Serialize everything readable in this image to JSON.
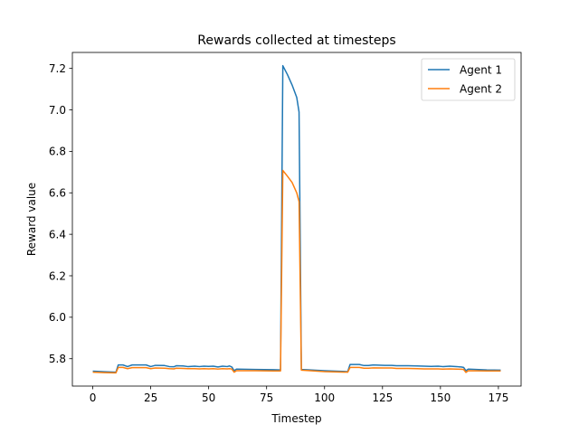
{
  "chart_data": {
    "type": "line",
    "title": "Rewards collected at timesteps",
    "xlabel": "Timestep",
    "ylabel": "Reward value",
    "xlim": [
      -8.8,
      184.8
    ],
    "ylim": [
      5.668,
      7.277
    ],
    "xticks": [
      0,
      25,
      50,
      75,
      100,
      125,
      150,
      175
    ],
    "yticks": [
      5.8,
      6.0,
      6.2,
      6.4,
      6.6,
      6.8,
      7.0,
      7.2
    ],
    "legend_position": "top-right",
    "grid": false,
    "series": [
      {
        "name": "Agent 1",
        "color": "#1f77b4",
        "points": [
          [
            0,
            5.74
          ],
          [
            5,
            5.737
          ],
          [
            10,
            5.735
          ],
          [
            11,
            5.77
          ],
          [
            13,
            5.77
          ],
          [
            15,
            5.762
          ],
          [
            17,
            5.77
          ],
          [
            23,
            5.77
          ],
          [
            25,
            5.762
          ],
          [
            27,
            5.768
          ],
          [
            31,
            5.767
          ],
          [
            33,
            5.762
          ],
          [
            35,
            5.761
          ],
          [
            36,
            5.766
          ],
          [
            39,
            5.765
          ],
          [
            41,
            5.762
          ],
          [
            44,
            5.764
          ],
          [
            46,
            5.762
          ],
          [
            48,
            5.764
          ],
          [
            50,
            5.763
          ],
          [
            52,
            5.764
          ],
          [
            54,
            5.76
          ],
          [
            56,
            5.764
          ],
          [
            58,
            5.762
          ],
          [
            59,
            5.765
          ],
          [
            60,
            5.76
          ],
          [
            61,
            5.742
          ],
          [
            62,
            5.75
          ],
          [
            70,
            5.748
          ],
          [
            78,
            5.747
          ],
          [
            81,
            5.746
          ],
          [
            82,
            7.213
          ],
          [
            84,
            7.17
          ],
          [
            86,
            7.12
          ],
          [
            88,
            7.06
          ],
          [
            89,
            6.99
          ],
          [
            90,
            5.748
          ],
          [
            100,
            5.742
          ],
          [
            110,
            5.738
          ],
          [
            111,
            5.772
          ],
          [
            115,
            5.772
          ],
          [
            117,
            5.767
          ],
          [
            119,
            5.767
          ],
          [
            121,
            5.77
          ],
          [
            126,
            5.768
          ],
          [
            129,
            5.768
          ],
          [
            131,
            5.766
          ],
          [
            136,
            5.766
          ],
          [
            140,
            5.765
          ],
          [
            143,
            5.764
          ],
          [
            146,
            5.763
          ],
          [
            149,
            5.764
          ],
          [
            151,
            5.762
          ],
          [
            154,
            5.764
          ],
          [
            157,
            5.762
          ],
          [
            159,
            5.76
          ],
          [
            160,
            5.758
          ],
          [
            161,
            5.742
          ],
          [
            162,
            5.75
          ],
          [
            170,
            5.746
          ],
          [
            176,
            5.745
          ]
        ]
      },
      {
        "name": "Agent 2",
        "color": "#ff7f0e",
        "points": [
          [
            0,
            5.735
          ],
          [
            5,
            5.733
          ],
          [
            10,
            5.732
          ],
          [
            11,
            5.758
          ],
          [
            13,
            5.758
          ],
          [
            15,
            5.752
          ],
          [
            17,
            5.757
          ],
          [
            23,
            5.757
          ],
          [
            25,
            5.752
          ],
          [
            27,
            5.755
          ],
          [
            31,
            5.754
          ],
          [
            33,
            5.752
          ],
          [
            35,
            5.751
          ],
          [
            36,
            5.754
          ],
          [
            39,
            5.753
          ],
          [
            41,
            5.752
          ],
          [
            44,
            5.752
          ],
          [
            46,
            5.751
          ],
          [
            48,
            5.752
          ],
          [
            50,
            5.751
          ],
          [
            52,
            5.752
          ],
          [
            54,
            5.75
          ],
          [
            56,
            5.752
          ],
          [
            58,
            5.751
          ],
          [
            59,
            5.752
          ],
          [
            60,
            5.75
          ],
          [
            61,
            5.735
          ],
          [
            62,
            5.742
          ],
          [
            70,
            5.742
          ],
          [
            78,
            5.741
          ],
          [
            81,
            5.741
          ],
          [
            82,
            6.708
          ],
          [
            84,
            6.68
          ],
          [
            86,
            6.65
          ],
          [
            88,
            6.6
          ],
          [
            89,
            6.558
          ],
          [
            90,
            5.745
          ],
          [
            100,
            5.738
          ],
          [
            110,
            5.735
          ],
          [
            111,
            5.758
          ],
          [
            115,
            5.758
          ],
          [
            117,
            5.754
          ],
          [
            119,
            5.754
          ],
          [
            121,
            5.756
          ],
          [
            126,
            5.755
          ],
          [
            129,
            5.755
          ],
          [
            131,
            5.753
          ],
          [
            136,
            5.753
          ],
          [
            140,
            5.752
          ],
          [
            143,
            5.751
          ],
          [
            146,
            5.751
          ],
          [
            149,
            5.751
          ],
          [
            151,
            5.75
          ],
          [
            154,
            5.751
          ],
          [
            157,
            5.75
          ],
          [
            159,
            5.749
          ],
          [
            160,
            5.748
          ],
          [
            161,
            5.734
          ],
          [
            162,
            5.742
          ],
          [
            170,
            5.741
          ],
          [
            176,
            5.741
          ]
        ]
      }
    ]
  }
}
